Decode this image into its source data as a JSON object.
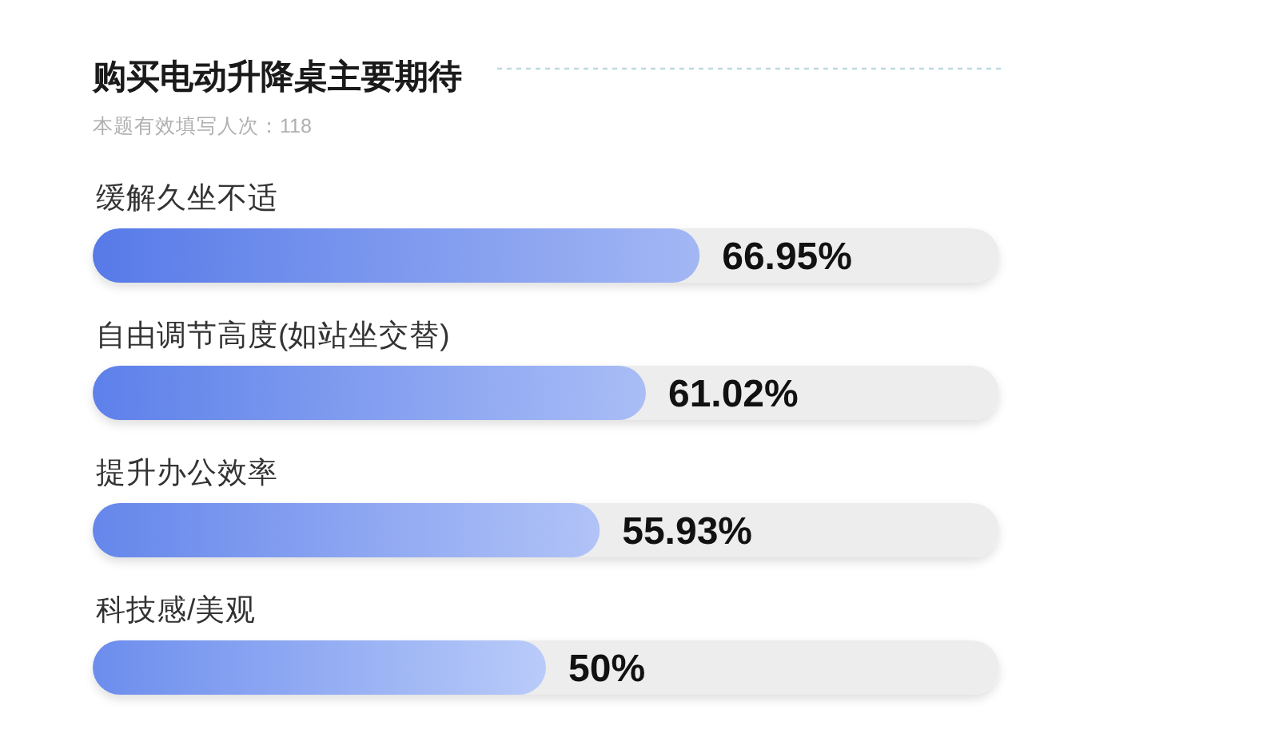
{
  "chart_data": {
    "type": "bar",
    "orientation": "horizontal",
    "title": "购买电动升降桌主要期待",
    "subtitle": "本题有效填写人次：118",
    "categories": [
      "缓解久坐不适",
      "自由调节高度(如站坐交替)",
      "提升办公效率",
      "科技感/美观"
    ],
    "values": [
      66.95,
      61.02,
      55.93,
      50
    ],
    "value_labels": [
      "66.95%",
      "61.02%",
      "55.93%",
      "50%"
    ],
    "colors": [
      "#6a8bee",
      "#7495f0",
      "#819ff2",
      "#8eabf5"
    ]
  }
}
